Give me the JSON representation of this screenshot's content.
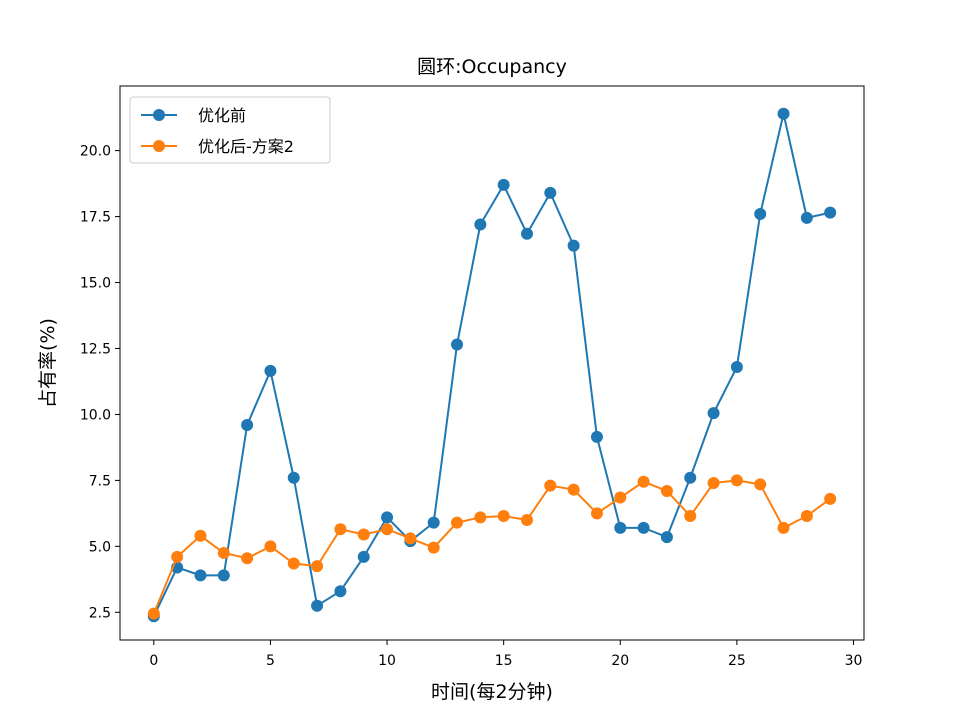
{
  "chart_data": {
    "type": "line",
    "title": "圆环:Occupancy",
    "xlabel": "时间(每2分钟)",
    "ylabel": "占有率(%)",
    "xlim": [
      -1.45,
      30.45
    ],
    "ylim": [
      1.45,
      22.45
    ],
    "xticks": [
      0,
      5,
      10,
      15,
      20,
      25,
      30
    ],
    "yticks": [
      2.5,
      5.0,
      7.5,
      10.0,
      12.5,
      15.0,
      17.5,
      20.0
    ],
    "xtick_labels": [
      "0",
      "5",
      "10",
      "15",
      "20",
      "25",
      "30"
    ],
    "ytick_labels": [
      "2.5",
      "5.0",
      "7.5",
      "10.0",
      "12.5",
      "15.0",
      "17.5",
      "20.0"
    ],
    "grid": false,
    "legend_position": "top-left",
    "x": [
      0,
      1,
      2,
      3,
      4,
      5,
      6,
      7,
      8,
      9,
      10,
      11,
      12,
      13,
      14,
      15,
      16,
      17,
      18,
      19,
      20,
      21,
      22,
      23,
      24,
      25,
      26,
      27,
      28,
      29
    ],
    "series": [
      {
        "name": "优化前",
        "color": "#1f77b4",
        "values": [
          2.35,
          4.2,
          3.9,
          3.9,
          9.6,
          11.65,
          7.6,
          2.75,
          3.3,
          4.6,
          6.1,
          5.2,
          5.9,
          12.65,
          17.2,
          18.7,
          16.85,
          18.4,
          16.4,
          9.15,
          5.7,
          5.7,
          5.35,
          7.6,
          10.05,
          11.8,
          17.6,
          21.4,
          17.45,
          17.65
        ]
      },
      {
        "name": "优化后-方案2",
        "color": "#ff7f0e",
        "values": [
          2.45,
          4.6,
          5.4,
          4.75,
          4.55,
          5.0,
          4.35,
          4.25,
          5.65,
          5.45,
          5.65,
          5.3,
          4.95,
          5.9,
          6.1,
          6.15,
          6.0,
          7.3,
          7.15,
          6.25,
          6.85,
          7.45,
          7.1,
          6.15,
          7.4,
          7.5,
          7.35,
          5.7,
          6.15,
          6.8
        ]
      }
    ]
  }
}
